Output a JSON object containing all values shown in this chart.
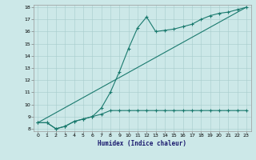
{
  "xlabel": "Humidex (Indice chaleur)",
  "bg_color": "#cce8e8",
  "line_color": "#1a7a6e",
  "xlim": [
    -0.5,
    23.5
  ],
  "ylim": [
    7.8,
    18.2
  ],
  "yticks": [
    8,
    9,
    10,
    11,
    12,
    13,
    14,
    15,
    16,
    17,
    18
  ],
  "xticks": [
    0,
    1,
    2,
    3,
    4,
    5,
    6,
    7,
    8,
    9,
    10,
    11,
    12,
    13,
    14,
    15,
    16,
    17,
    18,
    19,
    20,
    21,
    22,
    23
  ],
  "line1_x": [
    0,
    1,
    2,
    3,
    4,
    5,
    6,
    7,
    8,
    9,
    10,
    11,
    12,
    13,
    14,
    15,
    16,
    17,
    18,
    19,
    20,
    21,
    22,
    23
  ],
  "line1_y": [
    8.5,
    8.5,
    8.0,
    8.2,
    8.6,
    8.8,
    9.0,
    9.2,
    9.5,
    9.5,
    9.5,
    9.5,
    9.5,
    9.5,
    9.5,
    9.5,
    9.5,
    9.5,
    9.5,
    9.5,
    9.5,
    9.5,
    9.5,
    9.5
  ],
  "line2_x": [
    0,
    1,
    2,
    3,
    4,
    5,
    6,
    7,
    8,
    9,
    10,
    11,
    12,
    13,
    14,
    15,
    16,
    17,
    18,
    19,
    20,
    21,
    22,
    23
  ],
  "line2_y": [
    8.5,
    8.5,
    8.0,
    8.2,
    8.6,
    8.8,
    9.0,
    9.7,
    11.0,
    12.7,
    14.6,
    16.3,
    17.2,
    16.0,
    16.1,
    16.2,
    16.4,
    16.6,
    17.0,
    17.3,
    17.5,
    17.6,
    17.8,
    18.0
  ],
  "line3_x": [
    0,
    23
  ],
  "line3_y": [
    8.5,
    18.0
  ]
}
